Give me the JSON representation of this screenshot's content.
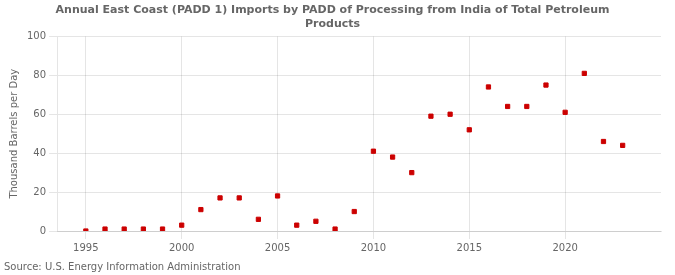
{
  "chart_data": {
    "type": "scatter",
    "title": "Annual East Coast (PADD 1) Imports by PADD of Processing from India of Total Petroleum\nProducts",
    "y_label": "Thousand Barrels per Day",
    "annotations": [
      "Source: U.S. Energy Information Administration"
    ],
    "x": [
      1995,
      1996,
      1997,
      1998,
      1999,
      2000,
      2001,
      2002,
      2003,
      2004,
      2005,
      2006,
      2007,
      2008,
      2009,
      2010,
      2011,
      2012,
      2013,
      2014,
      2015,
      2016,
      2017,
      2018,
      2019,
      2020,
      2021,
      2022,
      2023
    ],
    "values": [
      0,
      1,
      1,
      1,
      1,
      3,
      11,
      17,
      17,
      6,
      18,
      3,
      5,
      1,
      10,
      41,
      38,
      30,
      59,
      60,
      52,
      74,
      64,
      64,
      75,
      61,
      81,
      46,
      44
    ],
    "color": "#cc0000",
    "marker": "square",
    "xlim": [
      1993.5,
      2025
    ],
    "xticks": [
      1995,
      2000,
      2005,
      2010,
      2015,
      2020
    ],
    "ylim": [
      0,
      100
    ],
    "yticks": [
      0,
      20,
      40,
      60,
      80,
      100
    ],
    "grid": true
  }
}
